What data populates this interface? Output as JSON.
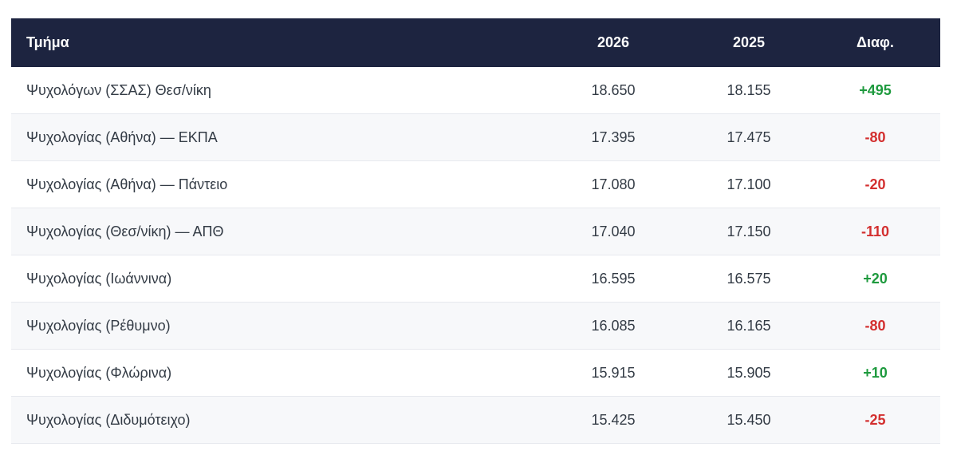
{
  "table": {
    "headers": {
      "department": "Τμήμα",
      "year_2026": "2026",
      "year_2025": "2025",
      "diff": "Διαφ."
    },
    "rows": [
      {
        "department": "Ψυχολόγων (ΣΣΑΣ) Θεσ/νίκη",
        "y2026": "18.650",
        "y2025": "18.155",
        "diff": "+495",
        "trend": "pos"
      },
      {
        "department": "Ψυχολογίας (Αθήνα) — ΕΚΠΑ",
        "y2026": "17.395",
        "y2025": "17.475",
        "diff": "-80",
        "trend": "neg"
      },
      {
        "department": "Ψυχολογίας (Αθήνα) — Πάντειο",
        "y2026": "17.080",
        "y2025": "17.100",
        "diff": "-20",
        "trend": "neg"
      },
      {
        "department": "Ψυχολογίας (Θεσ/νίκη) — ΑΠΘ",
        "y2026": "17.040",
        "y2025": "17.150",
        "diff": "-110",
        "trend": "neg"
      },
      {
        "department": "Ψυχολογίας (Ιωάννινα)",
        "y2026": "16.595",
        "y2025": "16.575",
        "diff": "+20",
        "trend": "pos"
      },
      {
        "department": "Ψυχολογίας (Ρέθυμνο)",
        "y2026": "16.085",
        "y2025": "16.165",
        "diff": "-80",
        "trend": "neg"
      },
      {
        "department": "Ψυχολογίας (Φλώρινα)",
        "y2026": "15.915",
        "y2025": "15.905",
        "diff": "+10",
        "trend": "pos"
      },
      {
        "department": "Ψυχολογίας (Διδυμότειχο)",
        "y2026": "15.425",
        "y2025": "15.450",
        "diff": "-25",
        "trend": "neg"
      }
    ]
  },
  "colors": {
    "header_bg": "#1d2440",
    "positive": "#1e9a3e",
    "negative": "#d32f2f"
  }
}
